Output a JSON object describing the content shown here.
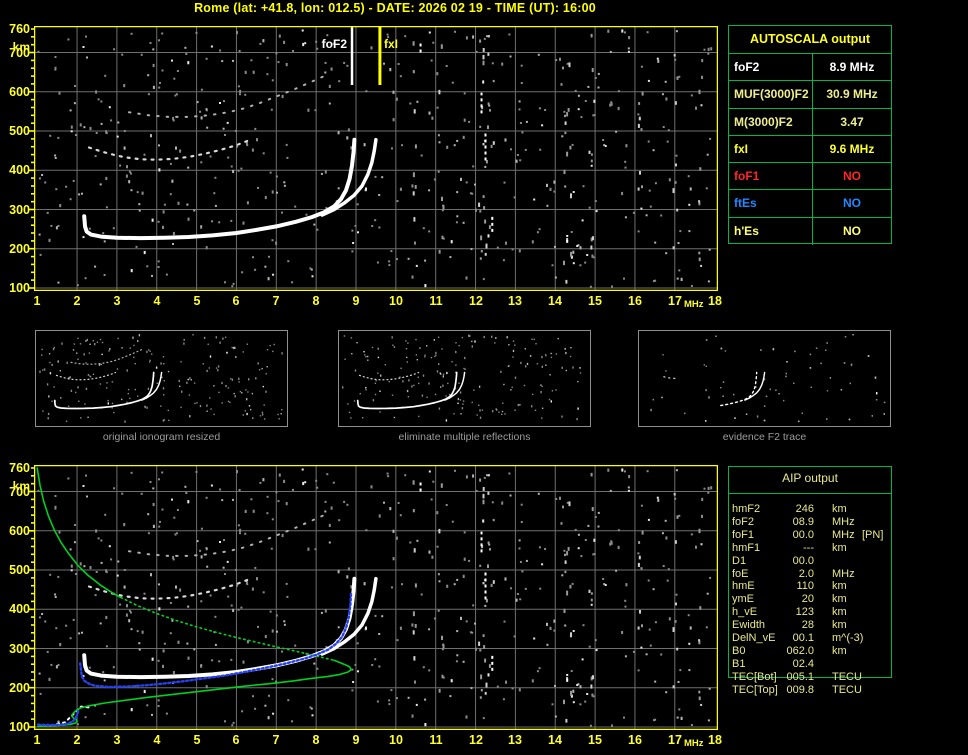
{
  "title": "Rome (lat: +41.8, lon: 012.5) - DATE: 2026 02 19 - TIME (UT): 16:00",
  "colors": {
    "background": "#000000",
    "frame": "#ffff00",
    "grid": "#6f6f6f",
    "table_border": "#00b44e",
    "axis_text": "#ffff30",
    "aip_text": "#e8e88c",
    "profile_green": "#00d020",
    "fitted_blue": "#2540f0",
    "trace_white": "#ffffff"
  },
  "axes": {
    "x_ticks": [
      1,
      2,
      3,
      4,
      5,
      6,
      7,
      8,
      9,
      10,
      11,
      12,
      13,
      14,
      15,
      16,
      17,
      18
    ],
    "x_unit": "MHz",
    "y_ticks": [
      760,
      700,
      600,
      500,
      400,
      300,
      200,
      100
    ],
    "y_unit": "km",
    "x_range_mhz": [
      1,
      18
    ],
    "y_range_km": [
      100,
      760
    ]
  },
  "markers": {
    "foF2": {
      "label": "foF2",
      "freq_mhz": 8.9
    },
    "fxI": {
      "label": "fxI",
      "freq_mhz": 9.6
    }
  },
  "panels": [
    {
      "caption": "original ionogram resized"
    },
    {
      "caption": "eliminate multiple reflections"
    },
    {
      "caption": "evidence F2 trace"
    }
  ],
  "autoscala_table": {
    "header": "AUTOSCALA output",
    "rows": [
      {
        "label": "foF2",
        "value": "8.9 MHz",
        "color": "#ffffff"
      },
      {
        "label": "MUF(3000)F2",
        "value": "30.9 MHz",
        "color": "#eeee8e"
      },
      {
        "label": "M(3000)F2",
        "value": "3.47",
        "color": "#eeee8e"
      },
      {
        "label": "fxI",
        "value": "9.6 MHz",
        "color": "#ffff30"
      },
      {
        "label": "foF1",
        "value": "NO",
        "color": "#ff2626"
      },
      {
        "label": "ftEs",
        "value": "NO",
        "color": "#2288ff"
      },
      {
        "label": "h'Es",
        "value": "NO",
        "color": "#ffff70"
      }
    ]
  },
  "aip_table": {
    "header": "AIP output",
    "rows": [
      [
        "hmF2",
        "246",
        "km",
        ""
      ],
      [
        "foF2",
        "08.9",
        "MHz",
        ""
      ],
      [
        "foF1",
        "00.0",
        "MHz",
        "[PN]"
      ],
      [
        "hmF1",
        "---",
        "km",
        ""
      ],
      [
        "D1",
        "00.0",
        "",
        ""
      ],
      [
        "foE",
        "2.0",
        "MHz",
        ""
      ],
      [
        "hmE",
        "110",
        "km",
        ""
      ],
      [
        "ymE",
        "20",
        "km",
        ""
      ],
      [
        "h_vE",
        "123",
        "km",
        ""
      ],
      [
        "Ewidth",
        "28",
        "km",
        ""
      ],
      [
        "DelN_vE",
        "00.1",
        "m^(-3)",
        ""
      ],
      [
        "B0",
        "062.0",
        "km",
        ""
      ],
      [
        "B1",
        "02.4",
        "",
        ""
      ],
      [
        "TEC[Bot]",
        "005.1",
        "TECU",
        ""
      ],
      [
        "TEC[Top]",
        "009.8",
        "TECU",
        ""
      ]
    ]
  },
  "chart_data": [
    {
      "type": "scatter",
      "name": "top-ionogram",
      "xlabel": "MHz",
      "ylabel": "km",
      "xlim": [
        1,
        18
      ],
      "ylim": [
        100,
        760
      ],
      "grid": true,
      "markers": {
        "foF2_mhz": 8.9,
        "fxI_mhz": 9.6
      },
      "series": [
        {
          "name": "o_trace",
          "color": "#ffffff",
          "width": 4,
          "dash": "",
          "points": [
            [
              2.18,
              283
            ],
            [
              2.2,
              258
            ],
            [
              2.24,
              244
            ],
            [
              2.35,
              236
            ],
            [
              2.6,
              231
            ],
            [
              3.0,
              228
            ],
            [
              3.6,
              227
            ],
            [
              4.2,
              228
            ],
            [
              4.8,
              230
            ],
            [
              5.4,
              234
            ],
            [
              6.0,
              240
            ],
            [
              6.5,
              248
            ],
            [
              7.0,
              257
            ],
            [
              7.5,
              269
            ],
            [
              7.9,
              281
            ],
            [
              8.2,
              293
            ],
            [
              8.45,
              308
            ],
            [
              8.62,
              326
            ],
            [
              8.75,
              349
            ],
            [
              8.84,
              378
            ],
            [
              8.9,
              412
            ],
            [
              8.94,
              448
            ],
            [
              8.96,
              478
            ]
          ]
        },
        {
          "name": "x_trace",
          "color": "#ffffff",
          "width": 3.5,
          "dash": "",
          "points": [
            [
              8.15,
              286
            ],
            [
              8.45,
              300
            ],
            [
              8.7,
              316
            ],
            [
              8.95,
              336
            ],
            [
              9.15,
              360
            ],
            [
              9.3,
              390
            ],
            [
              9.4,
              420
            ],
            [
              9.46,
              450
            ],
            [
              9.5,
              478
            ]
          ]
        },
        {
          "name": "second_hop",
          "color": "#d8d8d8",
          "width": 2.2,
          "dash": "2 6",
          "points": [
            [
              2.3,
              458
            ],
            [
              2.6,
              448
            ],
            [
              2.9,
              440
            ],
            [
              3.2,
              433
            ],
            [
              3.6,
              428
            ],
            [
              4.0,
              427
            ],
            [
              4.4,
              429
            ],
            [
              4.8,
              434
            ],
            [
              5.2,
              442
            ],
            [
              5.6,
              452
            ],
            [
              6.0,
              464
            ],
            [
              6.35,
              478
            ]
          ]
        },
        {
          "name": "second_hop_upper",
          "color": "#b0b0b0",
          "width": 2,
          "dash": "1.5 8",
          "points": [
            [
              3.3,
              548
            ],
            [
              3.8,
              540
            ],
            [
              4.3,
              536
            ],
            [
              4.8,
              536
            ],
            [
              5.3,
              540
            ],
            [
              5.8,
              548
            ],
            [
              6.2,
              558
            ],
            [
              6.6,
              572
            ],
            [
              7.0,
              588
            ],
            [
              7.4,
              604
            ],
            [
              7.8,
              622
            ],
            [
              8.2,
              640
            ]
          ]
        }
      ]
    },
    {
      "type": "scatter",
      "name": "bottom-ionogram",
      "xlabel": "MHz",
      "ylabel": "km",
      "xlim": [
        1,
        18
      ],
      "ylim": [
        100,
        760
      ],
      "grid": true,
      "aip_profile": {
        "hmF2_km": 246,
        "foF2_mhz": 8.9,
        "foE_mhz": 2.0,
        "hmE_km": 110,
        "h_vE_km": 123
      },
      "series": [
        {
          "name": "o_trace",
          "color": "#ffffff",
          "width": 4,
          "dash": "",
          "points": [
            [
              2.18,
              283
            ],
            [
              2.2,
              258
            ],
            [
              2.24,
              244
            ],
            [
              2.35,
              236
            ],
            [
              2.6,
              231
            ],
            [
              3.0,
              228
            ],
            [
              3.6,
              227
            ],
            [
              4.2,
              228
            ],
            [
              4.8,
              230
            ],
            [
              5.4,
              234
            ],
            [
              6.0,
              240
            ],
            [
              6.5,
              248
            ],
            [
              7.0,
              257
            ],
            [
              7.5,
              269
            ],
            [
              7.9,
              281
            ],
            [
              8.2,
              293
            ],
            [
              8.45,
              308
            ],
            [
              8.62,
              326
            ],
            [
              8.75,
              349
            ],
            [
              8.84,
              378
            ],
            [
              8.9,
              412
            ],
            [
              8.94,
              448
            ],
            [
              8.96,
              478
            ]
          ]
        },
        {
          "name": "x_trace",
          "color": "#ffffff",
          "width": 3.5,
          "dash": "",
          "points": [
            [
              8.15,
              286
            ],
            [
              8.45,
              300
            ],
            [
              8.7,
              316
            ],
            [
              8.95,
              336
            ],
            [
              9.15,
              360
            ],
            [
              9.3,
              390
            ],
            [
              9.4,
              420
            ],
            [
              9.46,
              450
            ],
            [
              9.5,
              478
            ]
          ]
        },
        {
          "name": "second_hop",
          "color": "#d8d8d8",
          "width": 2.2,
          "dash": "2 6",
          "points": [
            [
              2.3,
              458
            ],
            [
              2.6,
              448
            ],
            [
              2.9,
              440
            ],
            [
              3.2,
              433
            ],
            [
              3.6,
              428
            ],
            [
              4.0,
              427
            ],
            [
              4.4,
              429
            ],
            [
              4.8,
              434
            ],
            [
              5.2,
              442
            ],
            [
              5.6,
              452
            ],
            [
              6.0,
              464
            ],
            [
              6.35,
              478
            ]
          ]
        },
        {
          "name": "second_hop_upper",
          "color": "#b0b0b0",
          "width": 2,
          "dash": "1.5 8",
          "points": [
            [
              3.3,
              548
            ],
            [
              3.8,
              540
            ],
            [
              4.3,
              536
            ],
            [
              4.8,
              536
            ],
            [
              5.3,
              540
            ],
            [
              5.8,
              548
            ],
            [
              6.2,
              558
            ],
            [
              6.6,
              572
            ],
            [
              7.0,
              588
            ],
            [
              7.4,
              604
            ],
            [
              7.8,
              622
            ],
            [
              8.2,
              640
            ]
          ]
        },
        {
          "name": "e_scatter",
          "color": "#ffffff",
          "width": 2,
          "dash": "2 4",
          "points": [
            [
              1.5,
              108
            ],
            [
              1.7,
              112
            ],
            [
              2.1,
              152
            ],
            [
              2.3,
              150
            ]
          ]
        },
        {
          "name": "profile_topside",
          "color": "#00d020",
          "width": 1.6,
          "dash": "",
          "points": [
            [
              1.0,
              760
            ],
            [
              1.07,
              716
            ],
            [
              1.16,
              676
            ],
            [
              1.28,
              638
            ],
            [
              1.43,
              602
            ],
            [
              1.6,
              570
            ],
            [
              1.8,
              540
            ],
            [
              2.02,
              512
            ],
            [
              2.28,
              486
            ],
            [
              2.58,
              462
            ],
            [
              2.9,
              441
            ],
            [
              3.1,
              430
            ]
          ]
        },
        {
          "name": "profile_topside_mid",
          "color": "#00d020",
          "width": 1.6,
          "dash": "1.5 3.5",
          "points": [
            [
              3.1,
              430
            ],
            [
              3.5,
              410
            ],
            [
              4.0,
              389
            ],
            [
              4.5,
              371
            ],
            [
              5.0,
              355
            ],
            [
              5.5,
              341
            ],
            [
              6.0,
              328
            ],
            [
              6.5,
              316
            ],
            [
              7.0,
              304
            ],
            [
              7.5,
              293
            ],
            [
              8.0,
              281
            ],
            [
              8.45,
              270
            ]
          ]
        },
        {
          "name": "profile_bottomside",
          "color": "#00d020",
          "width": 1.6,
          "dash": "",
          "points": [
            [
              8.45,
              270
            ],
            [
              8.7,
              260
            ],
            [
              8.84,
              253
            ],
            [
              8.88,
              246
            ],
            [
              8.8,
              240
            ],
            [
              8.6,
              234
            ],
            [
              8.3,
              229
            ],
            [
              7.9,
              224
            ],
            [
              7.4,
              217
            ],
            [
              6.8,
              210
            ],
            [
              6.2,
              204
            ],
            [
              5.6,
              197
            ],
            [
              5.0,
              190
            ],
            [
              4.4,
              183
            ],
            [
              3.8,
              176
            ],
            [
              3.2,
              168
            ],
            [
              2.7,
              161
            ],
            [
              2.3,
              154
            ],
            [
              2.1,
              149
            ],
            [
              2.0,
              144
            ],
            [
              1.93,
              138
            ],
            [
              1.88,
              132
            ],
            [
              1.87,
              127
            ],
            [
              1.92,
              122
            ],
            [
              1.99,
              118
            ],
            [
              2.0,
              114
            ],
            [
              1.95,
              110
            ],
            [
              1.85,
              107
            ],
            [
              1.7,
              105
            ],
            [
              1.5,
              104
            ],
            [
              1.25,
              103
            ],
            [
              1.02,
              102
            ]
          ]
        },
        {
          "name": "fitted_trace",
          "color": "#2540f0",
          "width": 2.4,
          "dash": "2 2.5",
          "points": [
            [
              2.08,
              262
            ],
            [
              2.1,
              245
            ],
            [
              2.12,
              230
            ],
            [
              2.18,
              218
            ],
            [
              2.3,
              210
            ],
            [
              2.45,
              205
            ],
            [
              2.8,
              202
            ],
            [
              3.2,
              203
            ],
            [
              3.7,
              206
            ],
            [
              4.2,
              211
            ],
            [
              4.7,
              217
            ],
            [
              5.2,
              224
            ],
            [
              5.7,
              231
            ],
            [
              6.2,
              240
            ],
            [
              6.7,
              250
            ],
            [
              7.2,
              261
            ],
            [
              7.7,
              274
            ],
            [
              8.0,
              284
            ],
            [
              8.3,
              297
            ],
            [
              8.5,
              312
            ],
            [
              8.65,
              330
            ],
            [
              8.75,
              352
            ],
            [
              8.82,
              380
            ],
            [
              8.86,
              412
            ],
            [
              8.88,
              445
            ]
          ]
        },
        {
          "name": "fitted_e",
          "color": "#2540f0",
          "width": 2.4,
          "dash": "2 2.5",
          "points": [
            [
              1.02,
              106
            ],
            [
              1.2,
              105
            ],
            [
              1.4,
              105
            ],
            [
              1.6,
              106
            ],
            [
              1.75,
              108
            ],
            [
              1.87,
              113
            ],
            [
              1.95,
              120
            ],
            [
              2.0,
              130
            ],
            [
              2.03,
              142
            ]
          ]
        }
      ]
    }
  ]
}
